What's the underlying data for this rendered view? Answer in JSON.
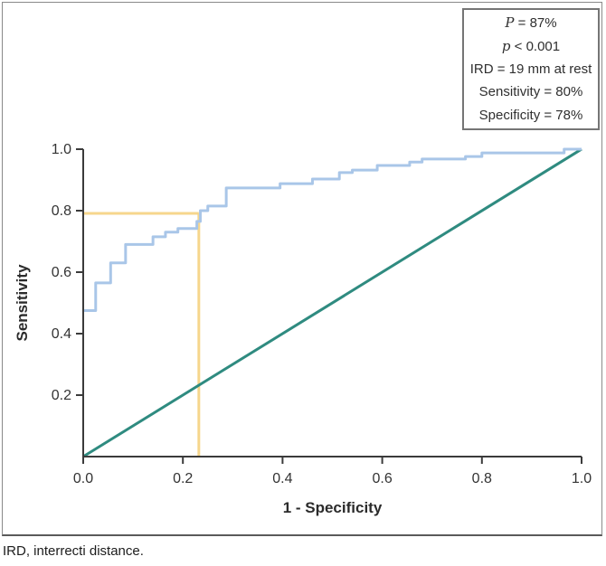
{
  "figure": {
    "caption": "IRD, interrecti distance."
  },
  "legend": {
    "line1": {
      "symbol": "P",
      "rest": " = 87%"
    },
    "line2": {
      "symbol": "p",
      "rest": " < 0.001"
    },
    "line3": "IRD = 19 mm at rest",
    "line4": "Sensitivity = 80%",
    "line5": "Specificity = 78%"
  },
  "chart_data": {
    "type": "line",
    "title": "",
    "xlabel": "1 - Specificity",
    "ylabel": "Sensitivity",
    "xlim": [
      0,
      1
    ],
    "ylim": [
      0,
      1
    ],
    "grid": false,
    "x_ticks": [
      {
        "v": 0.0,
        "label": "0.0"
      },
      {
        "v": 0.2,
        "label": "0.2"
      },
      {
        "v": 0.4,
        "label": "0.4"
      },
      {
        "v": 0.6,
        "label": "0.6"
      },
      {
        "v": 0.8,
        "label": "0.8"
      },
      {
        "v": 1.0,
        "label": "1.0"
      }
    ],
    "y_ticks": [
      {
        "v": 0.2,
        "label": "0.2"
      },
      {
        "v": 0.4,
        "label": "0.4"
      },
      {
        "v": 0.6,
        "label": "0.6"
      },
      {
        "v": 0.8,
        "label": "0.8"
      },
      {
        "v": 1.0,
        "label": "1.0"
      }
    ],
    "series": [
      {
        "name": "roc-curve",
        "color": "#a9c6e8",
        "width": 3,
        "points": [
          [
            0.0,
            0.475
          ],
          [
            0.025,
            0.475
          ],
          [
            0.025,
            0.565
          ],
          [
            0.055,
            0.565
          ],
          [
            0.055,
            0.63
          ],
          [
            0.085,
            0.63
          ],
          [
            0.085,
            0.69
          ],
          [
            0.14,
            0.69
          ],
          [
            0.14,
            0.715
          ],
          [
            0.165,
            0.715
          ],
          [
            0.165,
            0.73
          ],
          [
            0.19,
            0.73
          ],
          [
            0.19,
            0.742
          ],
          [
            0.228,
            0.742
          ],
          [
            0.228,
            0.765
          ],
          [
            0.235,
            0.765
          ],
          [
            0.235,
            0.8
          ],
          [
            0.25,
            0.8
          ],
          [
            0.25,
            0.815
          ],
          [
            0.287,
            0.815
          ],
          [
            0.287,
            0.874
          ],
          [
            0.395,
            0.874
          ],
          [
            0.395,
            0.888
          ],
          [
            0.46,
            0.888
          ],
          [
            0.46,
            0.903
          ],
          [
            0.514,
            0.903
          ],
          [
            0.514,
            0.924
          ],
          [
            0.54,
            0.924
          ],
          [
            0.54,
            0.932
          ],
          [
            0.59,
            0.932
          ],
          [
            0.59,
            0.947
          ],
          [
            0.655,
            0.947
          ],
          [
            0.655,
            0.958
          ],
          [
            0.68,
            0.958
          ],
          [
            0.68,
            0.968
          ],
          [
            0.767,
            0.968
          ],
          [
            0.767,
            0.976
          ],
          [
            0.8,
            0.976
          ],
          [
            0.8,
            0.988
          ],
          [
            0.965,
            0.988
          ],
          [
            0.965,
            1.0
          ],
          [
            1.0,
            1.0
          ]
        ]
      },
      {
        "name": "reference-diagonal",
        "color": "#2f8b80",
        "width": 3,
        "points": [
          [
            0,
            0
          ],
          [
            1,
            1
          ]
        ]
      }
    ],
    "crosshair": {
      "x": 0.232,
      "y": 0.791,
      "color": "#f6d68c",
      "width": 3,
      "note": "optimal cutoff marker: sensitivity 0.80, 1-specificity 0.22"
    },
    "axis_color": "#3b3b3b",
    "annotations": [
      "P = 87%",
      "p < 0.001",
      "IRD = 19 mm at rest",
      "Sensitivity = 80%",
      "Specificity = 78%"
    ]
  }
}
